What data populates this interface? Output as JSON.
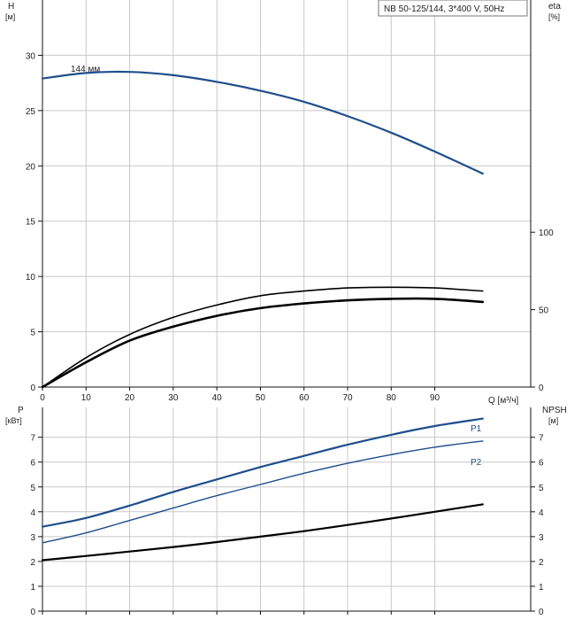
{
  "colors": {
    "blue": "#1f4e8c",
    "black": "#000000",
    "grid": "#c8c8c8"
  },
  "chart_data": [
    {
      "id": "head",
      "type": "line",
      "title": "NB 50-125/144, 3*400 V, 50Hz",
      "left_axis": {
        "name": "H",
        "unit": "[м]",
        "ylim": [
          0,
          35
        ],
        "ticks": [
          0,
          5,
          10,
          15,
          20,
          25,
          30
        ]
      },
      "right_axis": {
        "name": "eta",
        "unit": "[%]",
        "ylim": [
          0,
          250
        ],
        "ticks": [
          0,
          50,
          100
        ]
      },
      "x_axis": {
        "unit": "Q [м³/ч]",
        "xlim": [
          0,
          112
        ],
        "ticks": [
          0,
          10,
          20,
          30,
          40,
          50,
          60,
          70,
          80,
          90
        ]
      },
      "grid": true,
      "series": [
        {
          "name": "144 мм",
          "axis": "left",
          "color": "#1f4e8c",
          "width": 2.2,
          "x": [
            0,
            10,
            20,
            30,
            40,
            50,
            60,
            70,
            80,
            90,
            101
          ],
          "y": [
            27.9,
            28.4,
            28.5,
            28.2,
            27.6,
            26.8,
            25.8,
            24.5,
            23.0,
            21.3,
            19.3
          ]
        },
        {
          "name": "",
          "axis": "right",
          "color": "#000000",
          "width": 1.6,
          "x": [
            0,
            10,
            20,
            30,
            40,
            50,
            60,
            70,
            80,
            90,
            101
          ],
          "y": [
            0,
            19,
            34,
            45,
            53,
            59,
            62,
            64,
            64.5,
            64,
            62
          ]
        },
        {
          "name": "",
          "axis": "right",
          "color": "#000000",
          "width": 2.6,
          "x": [
            0,
            10,
            20,
            30,
            40,
            50,
            60,
            70,
            80,
            90,
            101
          ],
          "y": [
            0,
            16,
            30,
            39,
            46,
            51,
            54,
            56,
            57,
            57,
            55
          ]
        }
      ]
    },
    {
      "id": "power",
      "type": "line",
      "left_axis": {
        "name": "P",
        "unit": "[кВт]",
        "ylim": [
          0,
          8.2
        ],
        "ticks": [
          0,
          1,
          2,
          3,
          4,
          5,
          6,
          7
        ]
      },
      "right_axis": {
        "name": "NPSH",
        "unit": "[м]",
        "ylim": [
          0,
          8.2
        ],
        "ticks": [
          0,
          1,
          2,
          3,
          4,
          5,
          6,
          7
        ]
      },
      "x_axis": {
        "xlim": [
          0,
          112
        ],
        "ticks": [
          0,
          10,
          20,
          30,
          40,
          50,
          60,
          70,
          80,
          90
        ]
      },
      "grid": true,
      "series": [
        {
          "name": "P1",
          "axis": "left",
          "color": "#1f4e8c",
          "width": 2.2,
          "x": [
            0,
            10,
            20,
            30,
            40,
            50,
            60,
            70,
            80,
            90,
            101
          ],
          "y": [
            3.4,
            3.75,
            4.25,
            4.8,
            5.3,
            5.8,
            6.25,
            6.7,
            7.1,
            7.45,
            7.75
          ]
        },
        {
          "name": "P2",
          "axis": "left",
          "color": "#1f4e8c",
          "width": 1.4,
          "x": [
            0,
            10,
            20,
            30,
            40,
            50,
            60,
            70,
            80,
            90,
            101
          ],
          "y": [
            2.75,
            3.15,
            3.65,
            4.15,
            4.65,
            5.1,
            5.55,
            5.95,
            6.3,
            6.6,
            6.85
          ]
        },
        {
          "name": "",
          "axis": "right",
          "color": "#000000",
          "width": 2.2,
          "x": [
            0,
            10,
            20,
            30,
            40,
            50,
            60,
            70,
            80,
            90,
            101
          ],
          "y": [
            2.05,
            2.22,
            2.4,
            2.58,
            2.78,
            3.0,
            3.22,
            3.47,
            3.73,
            4.0,
            4.3
          ]
        }
      ]
    }
  ]
}
